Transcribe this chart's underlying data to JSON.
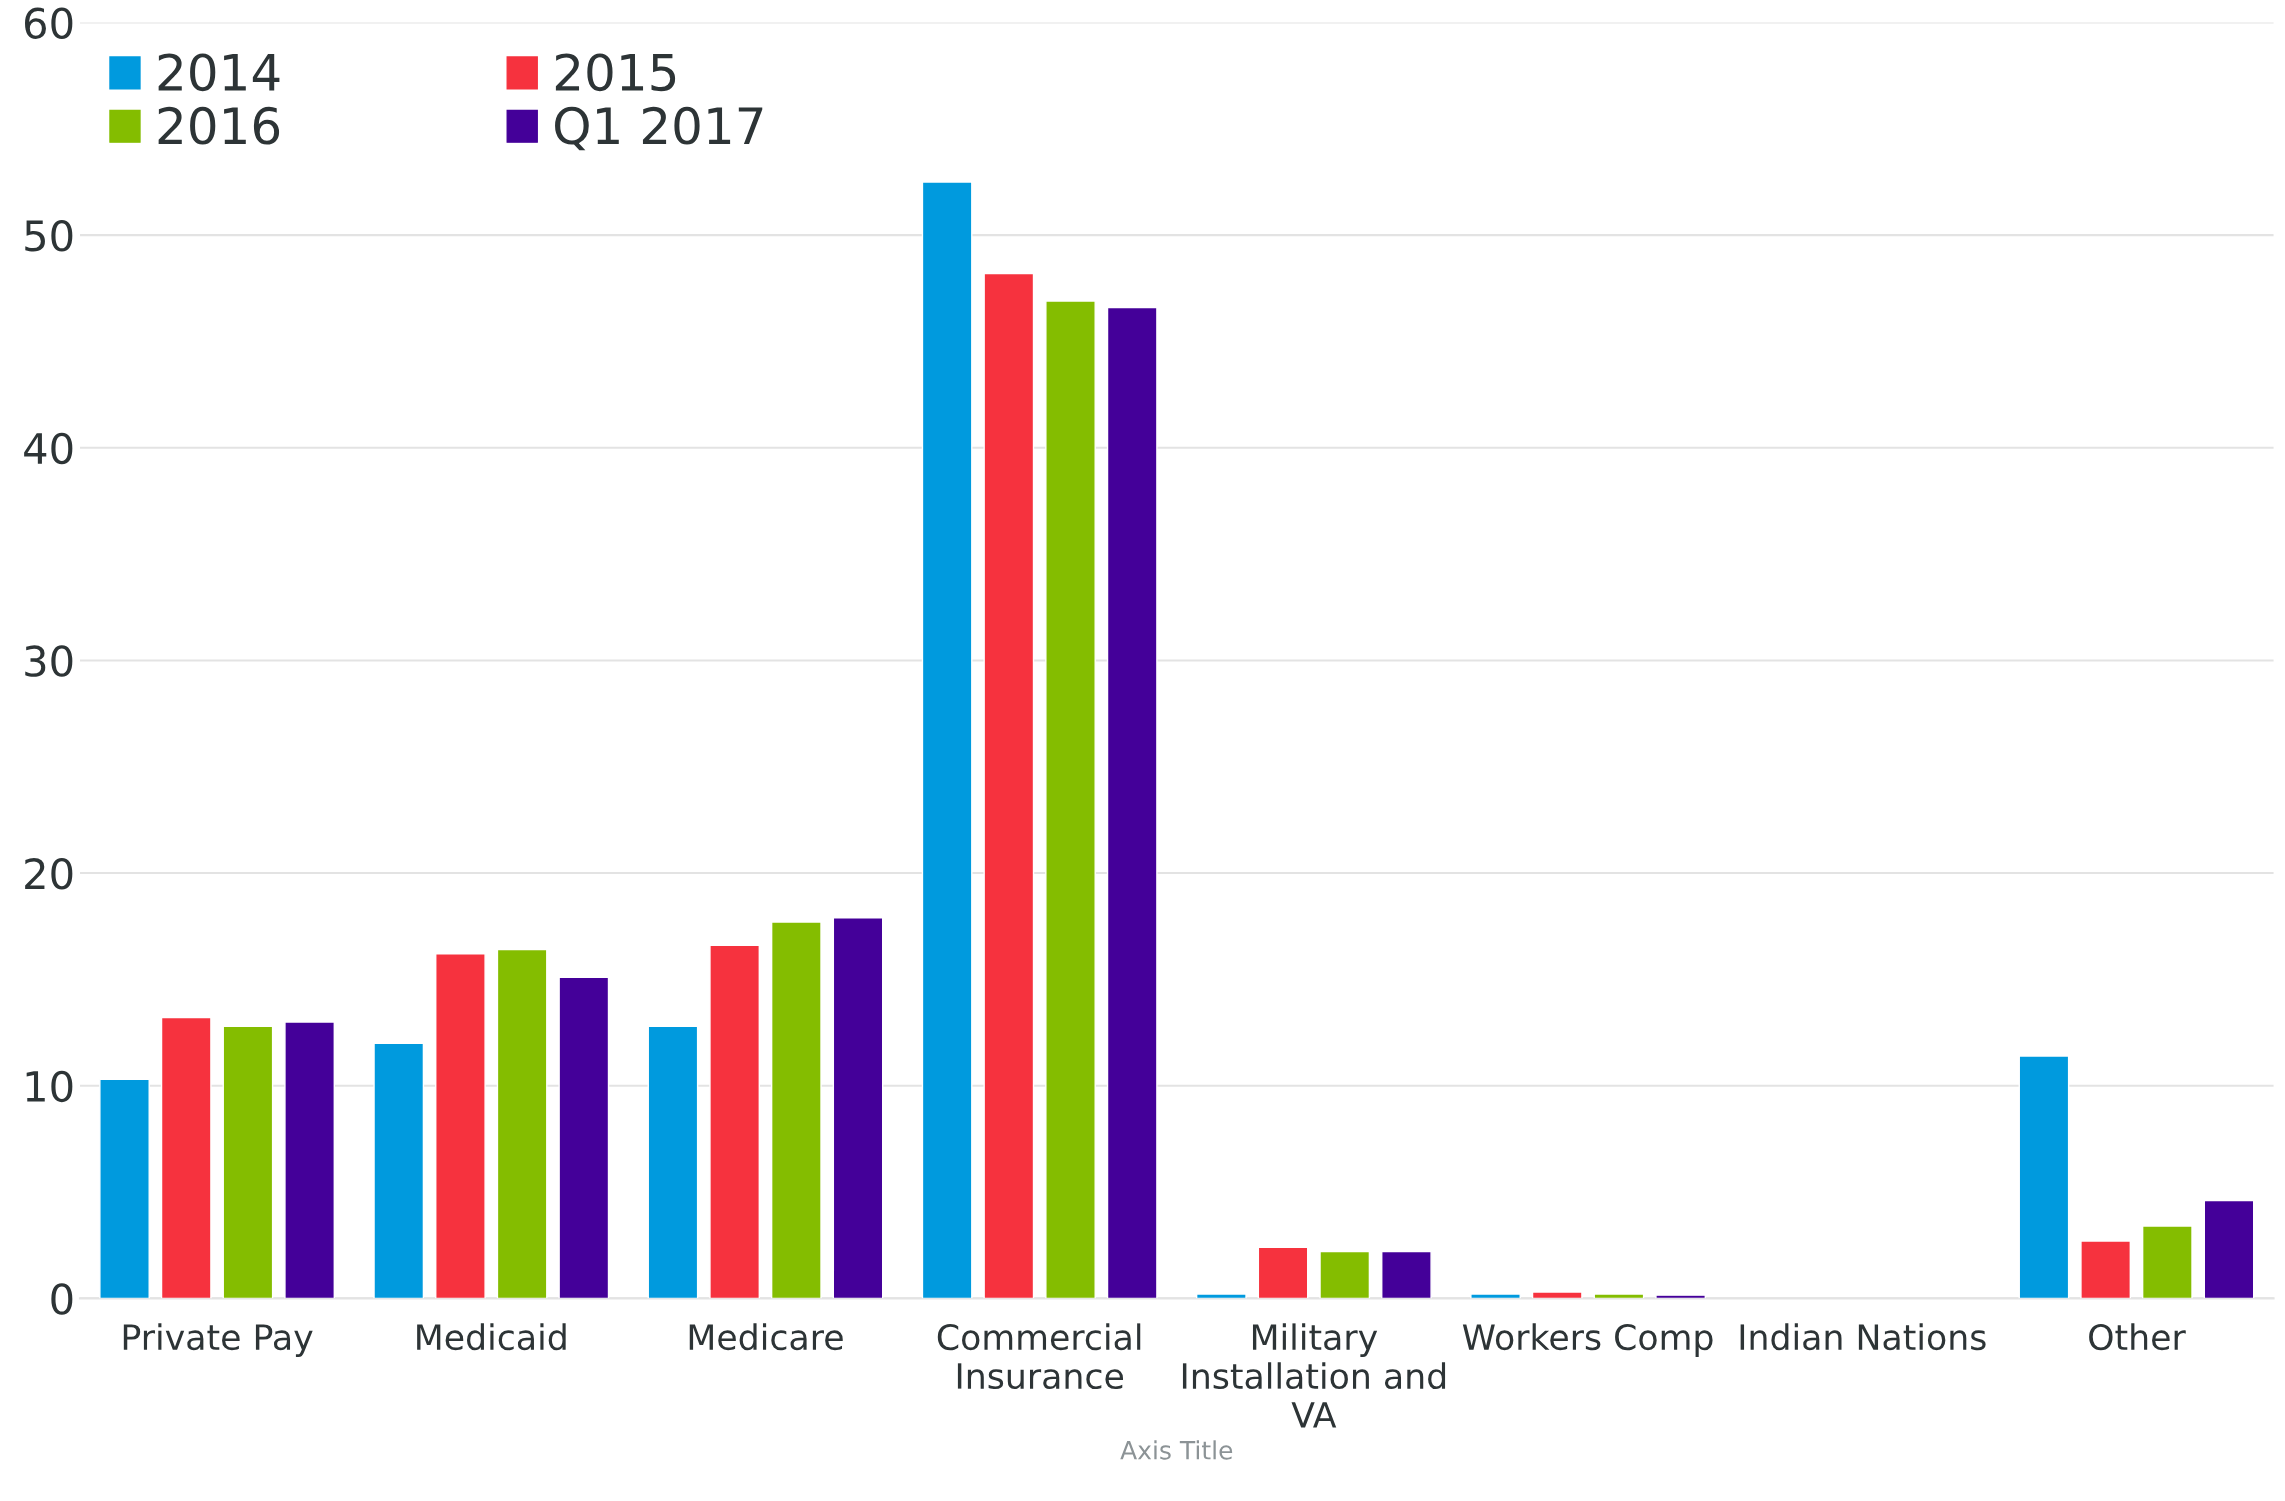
{
  "chart_data": {
    "type": "bar",
    "xlabel": "Axis Title",
    "categories": [
      "Private Pay",
      "Medicaid",
      "Medicare",
      "Commercial\nInsurance",
      "Military\nInstallation and\nVA",
      "Workers Comp",
      "Indian Nations",
      "Other"
    ],
    "series": [
      {
        "name": "2014",
        "color": "#009ade",
        "values": [
          10.3,
          12.0,
          12.8,
          52.5,
          0.2,
          0.2,
          null,
          11.4
        ]
      },
      {
        "name": "2015",
        "color": "#f6323e",
        "values": [
          13.2,
          16.2,
          16.6,
          48.2,
          2.4,
          0.3,
          null,
          2.7
        ]
      },
      {
        "name": "2016",
        "color": "#84bd00",
        "values": [
          12.8,
          16.4,
          17.7,
          46.9,
          2.2,
          0.2,
          null,
          3.4
        ]
      },
      {
        "name": "Q1 2017",
        "color": "#440099",
        "values": [
          13.0,
          15.1,
          17.9,
          46.6,
          2.2,
          0.15,
          null,
          4.6
        ]
      }
    ],
    "ylim": [
      0,
      60
    ],
    "yticks": [
      0,
      10,
      20,
      30,
      40,
      50,
      60
    ],
    "grid": "y",
    "legend": "top left"
  }
}
